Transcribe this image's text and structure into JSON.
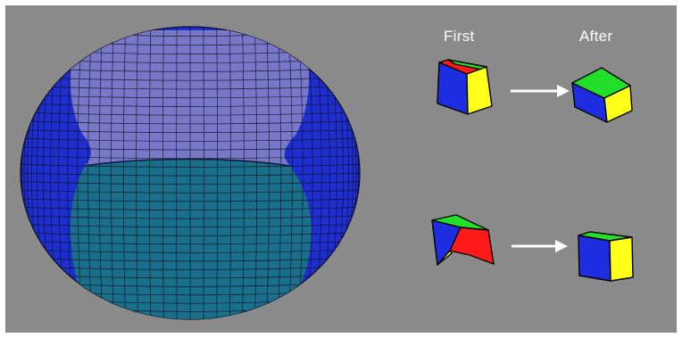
{
  "labels": {
    "first": "First",
    "after": "After"
  },
  "colors": {
    "background": "#8a8a8a",
    "outer_blue": "#1f2fcf",
    "top_purple": "#7878c8",
    "bottom_teal": "#1a6f8a",
    "mesh_line": "#0c0c20",
    "face_red": "#ff1a1a",
    "face_green": "#22e02a",
    "face_yellow": "#ffff1a",
    "face_blue": "#1e2de0",
    "arrow": "#ffffff"
  },
  "figures": {
    "left": "ellipsoid-mesh",
    "right": "element-transformation-pairs"
  }
}
